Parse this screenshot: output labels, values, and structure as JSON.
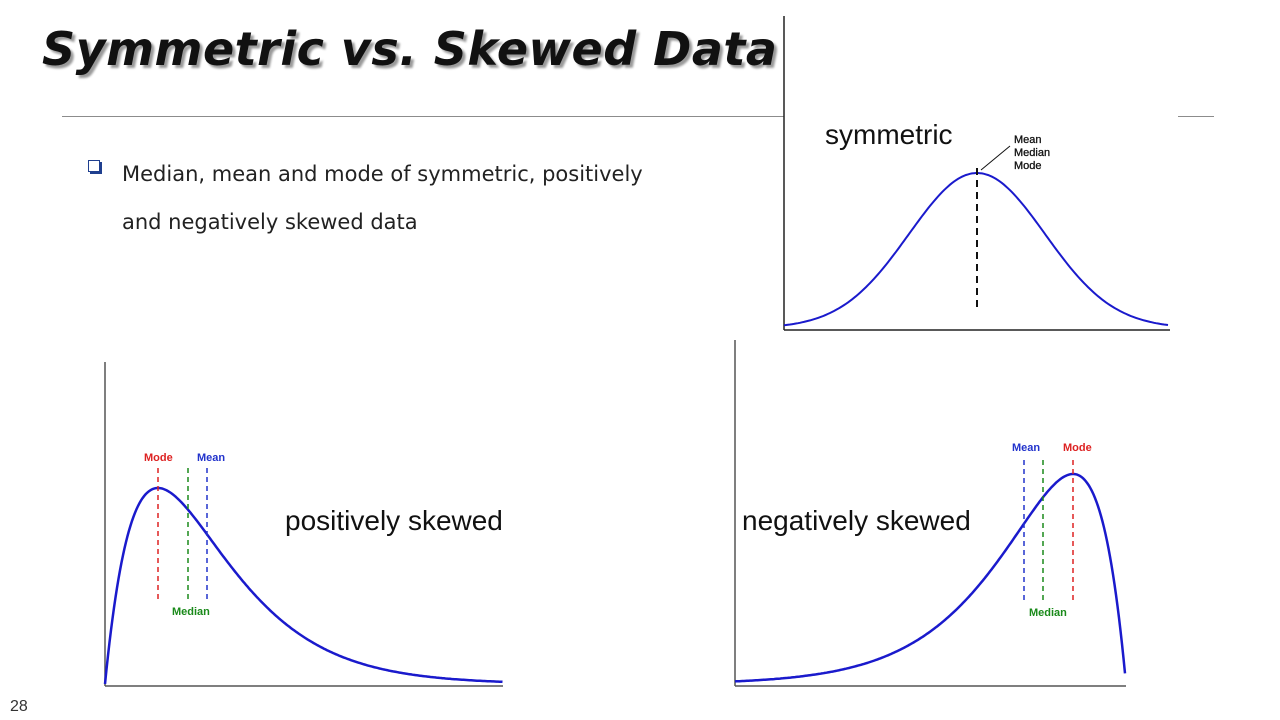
{
  "slide": {
    "title": "Symmetric vs. Skewed Data",
    "bullet": "Median, mean and mode of symmetric, positively and negatively skewed data",
    "page_number": "28"
  },
  "colors": {
    "curve": "#1a1acc",
    "mode": "#dd2222",
    "median": "#1a8a1a",
    "mean": "#2233cc",
    "bullet": "#1f3f8f"
  },
  "charts": {
    "symmetric": {
      "label": "symmetric",
      "annotation": [
        "Mean",
        "Median",
        "Mode"
      ]
    },
    "positive": {
      "label": "positively skewed",
      "mode_label": "Mode",
      "mean_label": "Mean",
      "median_label": "Median"
    },
    "negative": {
      "label": "negatively skewed",
      "mean_label": "Mean",
      "mode_label": "Mode",
      "median_label": "Median"
    }
  }
}
